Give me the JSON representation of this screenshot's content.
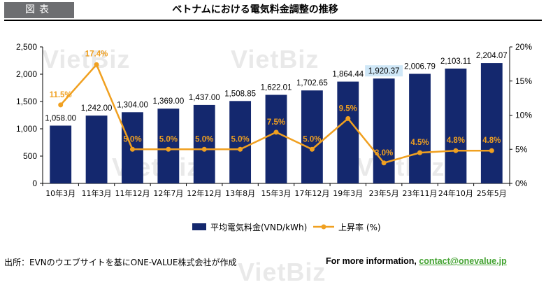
{
  "header": {
    "tag": "図表",
    "title": "ベトナムにおける電気料金調整の推移"
  },
  "watermark": "VietBiz",
  "chart_data": {
    "type": "bar+line",
    "categories": [
      "10年3月",
      "11年3月",
      "11年12月",
      "12年7月",
      "12年12月",
      "13年8月",
      "15年3月",
      "17年12月",
      "19年3月",
      "23年5月",
      "23年11月",
      "24年10月",
      "25年5月"
    ],
    "series": [
      {
        "name": "平均電気料金(VND/kWh)",
        "type": "bar",
        "axis": "left",
        "color": "#14286e",
        "values": [
          1058.0,
          1242.0,
          1304.0,
          1369.0,
          1437.0,
          1508.85,
          1622.01,
          1702.65,
          1864.44,
          1920.37,
          2006.79,
          2103.11,
          2204.07
        ],
        "labels": [
          "1,058.00",
          "1,242.00",
          "1,304.00",
          "1,369.00",
          "1,437.00",
          "1,508.85",
          "1,622.01",
          "1,702.65",
          "1,864.44",
          "1,920.37",
          "2,006.79",
          "2,103.11",
          "2,204.07"
        ]
      },
      {
        "name": "上昇率 (%)",
        "type": "line",
        "axis": "right",
        "color": "#f0a020",
        "values": [
          11.5,
          17.4,
          5.0,
          5.0,
          5.0,
          5.0,
          7.5,
          5.0,
          9.5,
          3.0,
          4.5,
          4.8,
          4.8
        ],
        "labels": [
          "11.5%",
          "17.4%",
          "5.0%",
          "5.0%",
          "5.0%",
          "5.0%",
          "7.5%",
          "5.0%",
          "9.5%",
          "3.0%",
          "4.5%",
          "4.8%",
          "4.8%"
        ]
      }
    ],
    "highlighted_label_index": 9,
    "highlight_color": "#cfe7f7",
    "y_left": {
      "min": 0,
      "max": 2500,
      "ticks": [
        0,
        500,
        1000,
        1500,
        2000,
        2500
      ],
      "tick_labels": [
        "0",
        "500",
        "1,000",
        "1,500",
        "2,000",
        "2,500"
      ]
    },
    "y_right": {
      "min": 0,
      "max": 20,
      "ticks": [
        0,
        5,
        10,
        15,
        20
      ],
      "tick_labels": [
        "0%",
        "5%",
        "10%",
        "15%",
        "20%"
      ]
    },
    "grid": false,
    "legend_position": "bottom"
  },
  "legend": {
    "bar_label": "平均電気料金(VND/kWh)",
    "line_label": "上昇率 (%)"
  },
  "footer": {
    "source": "出所：EVNのウエブサイトを基にONE-VALUE株式会社が作成",
    "more_info": "For more information, ",
    "contact": "contact@onevalue.jp"
  }
}
